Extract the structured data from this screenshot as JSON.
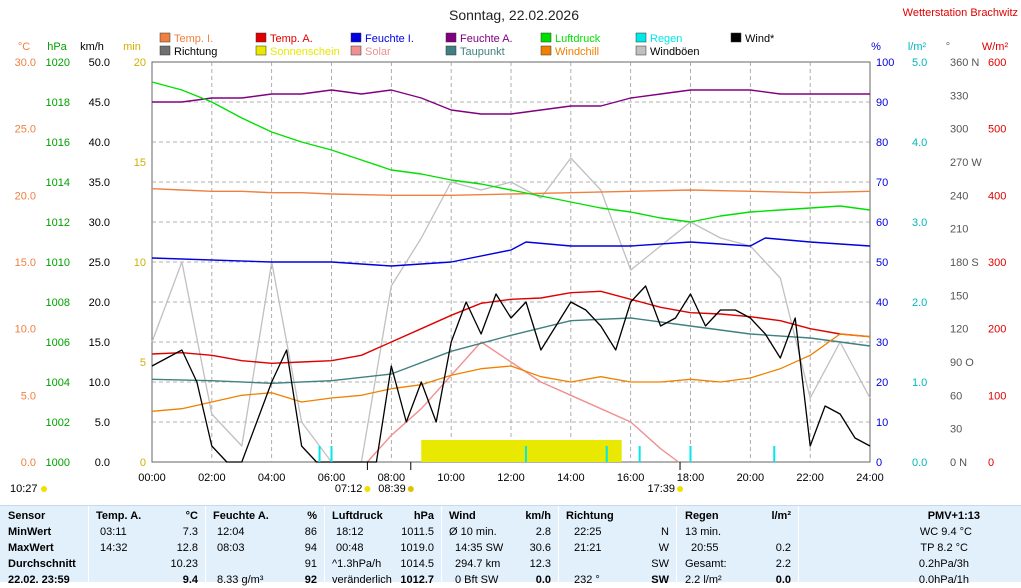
{
  "header": {
    "title": "Sonntag, 22.02.2026",
    "station": "Wetterstation Brachwitz"
  },
  "legend": [
    {
      "label": "Temp. I.",
      "color": "#f08040"
    },
    {
      "label": "Temp. A.",
      "color": "#e00000"
    },
    {
      "label": "Feuchte I.",
      "color": "#0000e0"
    },
    {
      "label": "Feuchte A.",
      "color": "#800080"
    },
    {
      "label": "Luftdruck",
      "color": "#00e000"
    },
    {
      "label": "Regen",
      "color": "#00e8e8"
    },
    {
      "label": "Wind*",
      "color": "#000000"
    },
    {
      "label": "Richtung",
      "color": "#707070"
    },
    {
      "label": "Sonnenschein",
      "color": "#e8e800"
    },
    {
      "label": "Solar",
      "color": "#f09090"
    },
    {
      "label": "Taupunkt",
      "color": "#408080"
    },
    {
      "label": "Windchill",
      "color": "#f08000"
    },
    {
      "label": "Windböen",
      "color": "#c0c0c0"
    }
  ],
  "axes": {
    "left_units": [
      "°C",
      "hPa",
      "km/h",
      "min"
    ],
    "right_units": [
      "%",
      "l/m²",
      "°",
      "W/m²"
    ],
    "temp_ticks": [
      "30.0",
      "25.0",
      "20.0",
      "15.0",
      "10.0",
      "5.0",
      "0.0"
    ],
    "hpa_ticks": [
      "1020",
      "1018",
      "1016",
      "1014",
      "1012",
      "1010",
      "1008",
      "1006",
      "1004",
      "1002",
      "1000"
    ],
    "kmh_ticks": [
      "50.0",
      "45.0",
      "40.0",
      "35.0",
      "30.0",
      "25.0",
      "20.0",
      "15.0",
      "10.0",
      "5.0",
      "0.0"
    ],
    "min_ticks": [
      "20",
      "15",
      "10",
      "5",
      "0"
    ],
    "pct_ticks": [
      "100",
      "90",
      "80",
      "70",
      "60",
      "50",
      "40",
      "30",
      "20",
      "10",
      "0"
    ],
    "rain_ticks": [
      "5.0",
      "4.0",
      "3.0",
      "2.0",
      "1.0",
      "0.0"
    ],
    "deg_ticks": [
      "360 N",
      "330",
      "300",
      "270 W",
      "240",
      "210",
      "180 S",
      "150",
      "120",
      "90 O",
      "60",
      "30",
      "0 N"
    ],
    "wm2_ticks": [
      "600",
      "500",
      "400",
      "300",
      "200",
      "100",
      "0"
    ],
    "time_ticks": [
      "00:00",
      "02:00",
      "04:00",
      "06:00",
      "08:00",
      "10:00",
      "12:00",
      "14:00",
      "16:00",
      "18:00",
      "20:00",
      "22:00",
      "24:00"
    ],
    "sunrise": "07:12",
    "sunset": "17:39",
    "moonrise": "08:39",
    "moonset": "10:27"
  },
  "chart_data": {
    "type": "line",
    "title": "Sonntag, 22.02.2026",
    "x_unit": "hours",
    "xlim": [
      0,
      24
    ],
    "series": [
      {
        "name": "Temp. I.",
        "unit": "°C",
        "x": [
          0,
          1,
          2,
          3,
          4,
          5,
          6,
          8,
          10,
          12,
          14,
          16,
          18,
          20,
          22,
          24
        ],
        "values": [
          20.5,
          20.4,
          20.3,
          20.3,
          20.2,
          20.2,
          20.1,
          20.0,
          20.0,
          20.1,
          20.2,
          20.3,
          20.4,
          20.3,
          20.2,
          20.3
        ]
      },
      {
        "name": "Temp. A.",
        "unit": "°C",
        "x": [
          0,
          1,
          2,
          3,
          4,
          5,
          6,
          7,
          8,
          9,
          10,
          11,
          12,
          13,
          14,
          15,
          16,
          17,
          18,
          19,
          20,
          21,
          22,
          23,
          24
        ],
        "values": [
          8.1,
          8.2,
          8.0,
          7.6,
          7.4,
          7.5,
          7.6,
          8.0,
          9.0,
          10.0,
          11.0,
          11.9,
          12.2,
          12.3,
          12.7,
          12.8,
          12.2,
          11.6,
          11.2,
          11.1,
          10.9,
          10.6,
          10.0,
          9.6,
          9.4
        ]
      },
      {
        "name": "Feuchte I.",
        "unit": "%",
        "x": [
          0,
          4,
          6,
          8,
          10,
          12,
          12.5,
          14,
          16,
          18,
          20,
          20.5,
          22,
          24
        ],
        "values": [
          51,
          50,
          50,
          49,
          50,
          53,
          55,
          54,
          54,
          55,
          54,
          56,
          55,
          54
        ]
      },
      {
        "name": "Feuchte A.",
        "unit": "%",
        "x": [
          0,
          1,
          2,
          3,
          4,
          5,
          6,
          7,
          8,
          9,
          10,
          11,
          12,
          13,
          14,
          15,
          16,
          17,
          18,
          19,
          20,
          21,
          22,
          23,
          24
        ],
        "values": [
          90,
          90,
          91,
          91,
          92,
          92,
          93,
          92,
          93,
          91,
          88,
          87,
          87,
          88,
          89,
          89,
          91,
          92,
          93,
          93,
          93,
          92,
          92,
          92,
          92
        ]
      },
      {
        "name": "Luftdruck",
        "unit": "hPa",
        "x": [
          0,
          1,
          2,
          3,
          4,
          5,
          6,
          7,
          8,
          9,
          10,
          11,
          12,
          13,
          14,
          15,
          16,
          17,
          18,
          19,
          20,
          21,
          22,
          23,
          24
        ],
        "values": [
          1019.0,
          1018.6,
          1018.0,
          1017.2,
          1016.5,
          1016.0,
          1015.6,
          1015.1,
          1014.6,
          1014.4,
          1014.1,
          1013.9,
          1013.6,
          1013.3,
          1013.0,
          1012.7,
          1012.5,
          1012.2,
          1012.0,
          1012.3,
          1012.5,
          1012.6,
          1012.7,
          1012.8,
          1012.6
        ]
      },
      {
        "name": "Taupunkt",
        "unit": "°C",
        "x": [
          0,
          2,
          4,
          6,
          8,
          10,
          12,
          14,
          16,
          18,
          20,
          22,
          24
        ],
        "values": [
          6.2,
          6.1,
          5.9,
          6.1,
          6.6,
          8.3,
          9.5,
          10.6,
          10.8,
          10.2,
          9.6,
          9.3,
          8.7
        ]
      },
      {
        "name": "Wind*",
        "unit": "km/h",
        "x": [
          0,
          1,
          1.5,
          2,
          2.5,
          3,
          4,
          4.5,
          5,
          5.5,
          6,
          6.5,
          7,
          7.5,
          8,
          8.5,
          9,
          9.5,
          10,
          10.5,
          11,
          11.5,
          12,
          12.5,
          13,
          13.5,
          14,
          14.5,
          15,
          15.5,
          16,
          16.5,
          17,
          17.5,
          18,
          18.5,
          19,
          19.5,
          20,
          20.5,
          21,
          21.5,
          22,
          22.5,
          23,
          23.5,
          24
        ],
        "values": [
          12,
          14,
          10,
          2,
          0,
          0,
          10,
          14,
          2,
          0,
          0,
          0,
          0,
          0,
          12,
          5,
          10,
          5,
          15,
          20,
          16,
          21,
          18,
          20,
          14,
          17,
          20,
          19,
          17,
          14,
          20,
          22,
          17,
          18,
          21,
          17,
          19,
          19,
          18,
          16,
          13,
          18,
          2,
          7,
          6,
          3,
          2
        ]
      },
      {
        "name": "Windböen",
        "unit": "km/h",
        "x": [
          0,
          1,
          2,
          3,
          4,
          5,
          6,
          7,
          8,
          9,
          10,
          11,
          12,
          13,
          14,
          15,
          16,
          17,
          18,
          19,
          20,
          21,
          22,
          23,
          24
        ],
        "values": [
          15,
          25,
          6,
          2,
          25,
          5,
          0,
          0,
          22,
          28,
          35,
          34,
          35,
          33,
          38,
          34,
          24,
          27,
          30,
          28,
          27,
          23,
          8,
          15,
          8
        ]
      },
      {
        "name": "Windchill",
        "unit": "°C",
        "x": [
          0,
          1,
          2,
          3,
          4,
          5,
          6,
          7,
          8,
          9,
          10,
          11,
          12,
          13,
          14,
          15,
          16,
          17,
          18,
          19,
          20,
          21,
          22,
          23,
          24
        ],
        "values": [
          3.8,
          4.0,
          4.5,
          5.0,
          5.2,
          4.5,
          4.8,
          5.0,
          5.5,
          5.8,
          6.5,
          7.0,
          7.2,
          6.4,
          6.0,
          6.4,
          6.0,
          6.0,
          6.2,
          6.0,
          6.3,
          7.0,
          8.0,
          9.6,
          9.4
        ]
      },
      {
        "name": "Solar",
        "unit": "W/m²",
        "x": [
          7.2,
          8,
          9,
          10,
          11,
          12,
          13,
          14,
          15,
          16,
          17,
          17.6
        ],
        "values": [
          0,
          40,
          80,
          130,
          180,
          150,
          120,
          100,
          80,
          60,
          20,
          0
        ]
      },
      {
        "name": "Sonnenschein",
        "unit": "min",
        "x": [
          9.0,
          9.3,
          9.7,
          10,
          15.7
        ],
        "values": [
          0,
          1,
          1,
          1,
          0
        ]
      },
      {
        "name": "Regen",
        "unit": "l/m²",
        "x": [
          5.6,
          6.0,
          12.5,
          15.2,
          16.3,
          18.0,
          20.8
        ],
        "values": [
          0.05,
          0.05,
          0.05,
          0.05,
          0.05,
          0.05,
          0.05
        ]
      }
    ]
  },
  "table": {
    "sensor": {
      "head": "Sensor",
      "rows": [
        "MinWert",
        "MaxWert",
        "Durchschnitt",
        "22.02. 23:59"
      ]
    },
    "temp": {
      "head": "Temp. A.",
      "unit": "°C",
      "rows": [
        [
          "03:11",
          "7.3"
        ],
        [
          "14:32",
          "12.8"
        ],
        [
          "",
          "10.23"
        ],
        [
          "",
          "9.4"
        ]
      ]
    },
    "feuchte": {
      "head": "Feuchte A.",
      "unit": "%",
      "rows": [
        [
          "12:04",
          "86"
        ],
        [
          "08:03",
          "94"
        ],
        [
          "",
          "91"
        ],
        [
          "8.33 g/m³",
          "92"
        ]
      ]
    },
    "luftdruck": {
      "head": "Luftdruck",
      "unit": "hPa",
      "rows": [
        [
          "18:12",
          "1011.5"
        ],
        [
          "00:48",
          "1019.0"
        ],
        [
          "^1.3hPa/h",
          "1014.5"
        ],
        [
          "veränderlich",
          "1012.7"
        ]
      ]
    },
    "wind": {
      "head": "Wind",
      "unit": "km/h",
      "rows": [
        [
          "Ø 10 min.",
          "2.8"
        ],
        [
          "14:35 SW",
          "30.6"
        ],
        [
          "294.7 km",
          "12.3"
        ],
        [
          "0 Bft SW",
          "0.0"
        ]
      ]
    },
    "richtung": {
      "head": "Richtung",
      "rows": [
        [
          "22:25",
          "N"
        ],
        [
          "21:21",
          "W"
        ],
        [
          "",
          "SW"
        ],
        [
          "232 °",
          "SW"
        ]
      ]
    },
    "regen": {
      "head": "Regen",
      "unit": "l/m²",
      "rows": [
        [
          "13 min.",
          ""
        ],
        [
          "20:55",
          "0.2"
        ],
        [
          "Gesamt:",
          "2.2"
        ],
        [
          "2.2 l/m²",
          "0.0"
        ]
      ]
    },
    "pmv": {
      "head": "PMV+1:13",
      "rows": [
        "WC 9.4 °C",
        "TP 8.2 °C",
        "0.2hPa/3h",
        "0.0hPa/1h"
      ]
    }
  }
}
